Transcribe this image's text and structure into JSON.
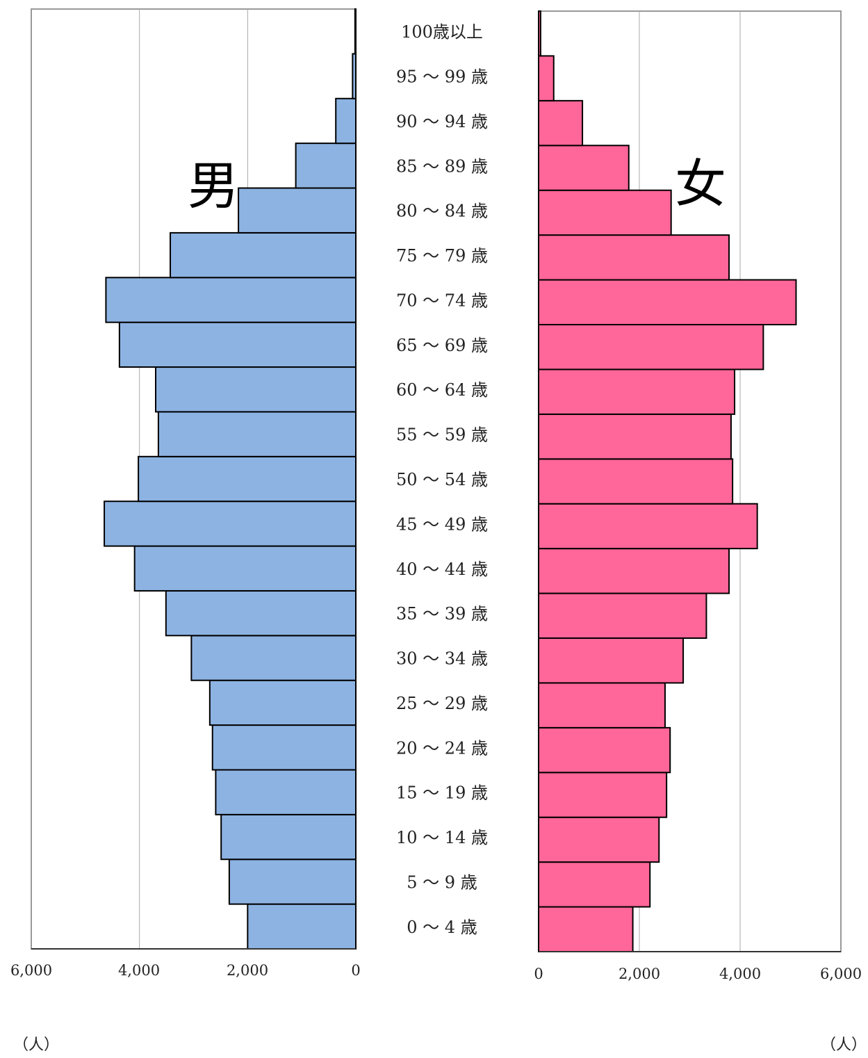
{
  "chart_data": {
    "type": "bar",
    "orientation": "horizontal",
    "layout": "population-pyramid",
    "categories": [
      "0 ～ 4 歳",
      "5 ～ 9 歳",
      "10 ～ 14 歳",
      "15 ～ 19 歳",
      "20 ～ 24 歳",
      "25 ～ 29 歳",
      "30 ～ 34 歳",
      "35 ～ 39 歳",
      "40 ～ 44 歳",
      "45 ～ 49 歳",
      "50 ～ 54 歳",
      "55 ～ 59 歳",
      "60 ～ 64 歳",
      "65 ～ 69 歳",
      "70 ～ 74 歳",
      "75 ～ 79 歳",
      "80 ～ 84 歳",
      "85 ～ 89 歳",
      "90 ～ 94 歳",
      "95 ～ 99 歳",
      "100歳以上"
    ],
    "series": [
      {
        "name": "男",
        "color": "#8db3e2",
        "values": [
          2000,
          2340,
          2490,
          2590,
          2650,
          2700,
          3040,
          3510,
          4090,
          4650,
          4020,
          3650,
          3700,
          4370,
          4620,
          3430,
          2170,
          1110,
          370,
          60,
          15
        ]
      },
      {
        "name": "女",
        "color": "#ff6699",
        "values": [
          1870,
          2210,
          2390,
          2540,
          2610,
          2510,
          2870,
          3330,
          3780,
          4340,
          3850,
          3820,
          3890,
          4460,
          5110,
          3780,
          2630,
          1790,
          870,
          300,
          40
        ]
      }
    ],
    "xlim": [
      0,
      6000
    ],
    "xticks": [
      "0",
      "2,000",
      "4,000",
      "6,000"
    ],
    "male_xticks": [
      "6,000",
      "4,000",
      "2,000",
      "0"
    ],
    "unit_label": "（人）",
    "grid": true,
    "bar_outline": "#000000"
  }
}
